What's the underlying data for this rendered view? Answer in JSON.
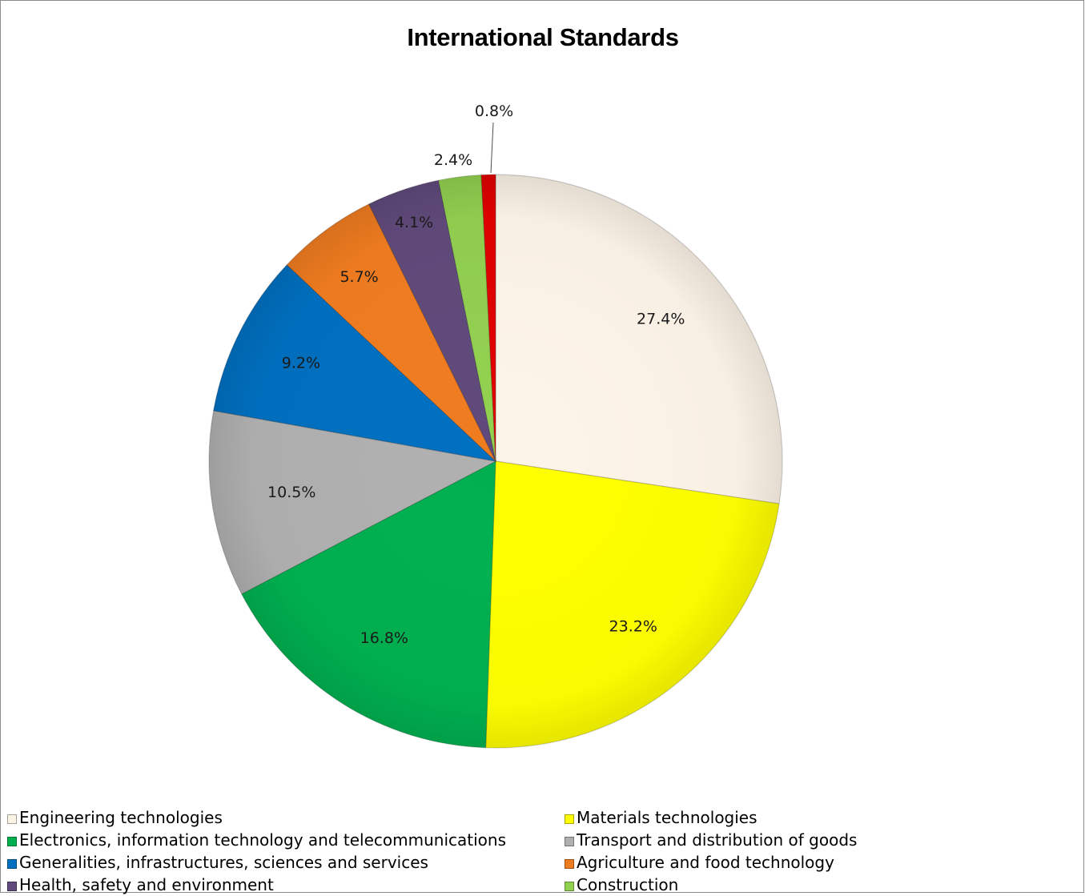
{
  "chart_data": {
    "type": "pie",
    "title": "International Standards",
    "series": [
      {
        "category": "Engineering technologies",
        "value": 27.4,
        "label": "27.4%",
        "color": "#fdf4e8"
      },
      {
        "category": "Materials technologies",
        "value": 23.2,
        "label": "23.2%",
        "color": "#ffff00"
      },
      {
        "category": "Electronics, information technology and telecommunications",
        "value": 16.8,
        "label": "16.8%",
        "color": "#00b050"
      },
      {
        "category": "Transport and distribution of goods",
        "value": 10.5,
        "label": "10.5%",
        "color": "#b0b0b0"
      },
      {
        "category": "Generalities, infrastructures, sciences and services",
        "value": 9.2,
        "label": "9.2%",
        "color": "#0070c0"
      },
      {
        "category": "Agriculture and food technology",
        "value": 5.7,
        "label": "5.7%",
        "color": "#f07c20"
      },
      {
        "category": "Health, safety and environment",
        "value": 4.1,
        "label": "4.1%",
        "color": "#604a7b"
      },
      {
        "category": "Construction",
        "value": 2.4,
        "label": "2.4%",
        "color": "#92d050"
      },
      {
        "category": "",
        "value": 0.8,
        "label": "0.8%",
        "color": "#e00000"
      }
    ],
    "legend_position": "bottom",
    "start_angle": "12 o'clock",
    "direction": "clockwise"
  }
}
